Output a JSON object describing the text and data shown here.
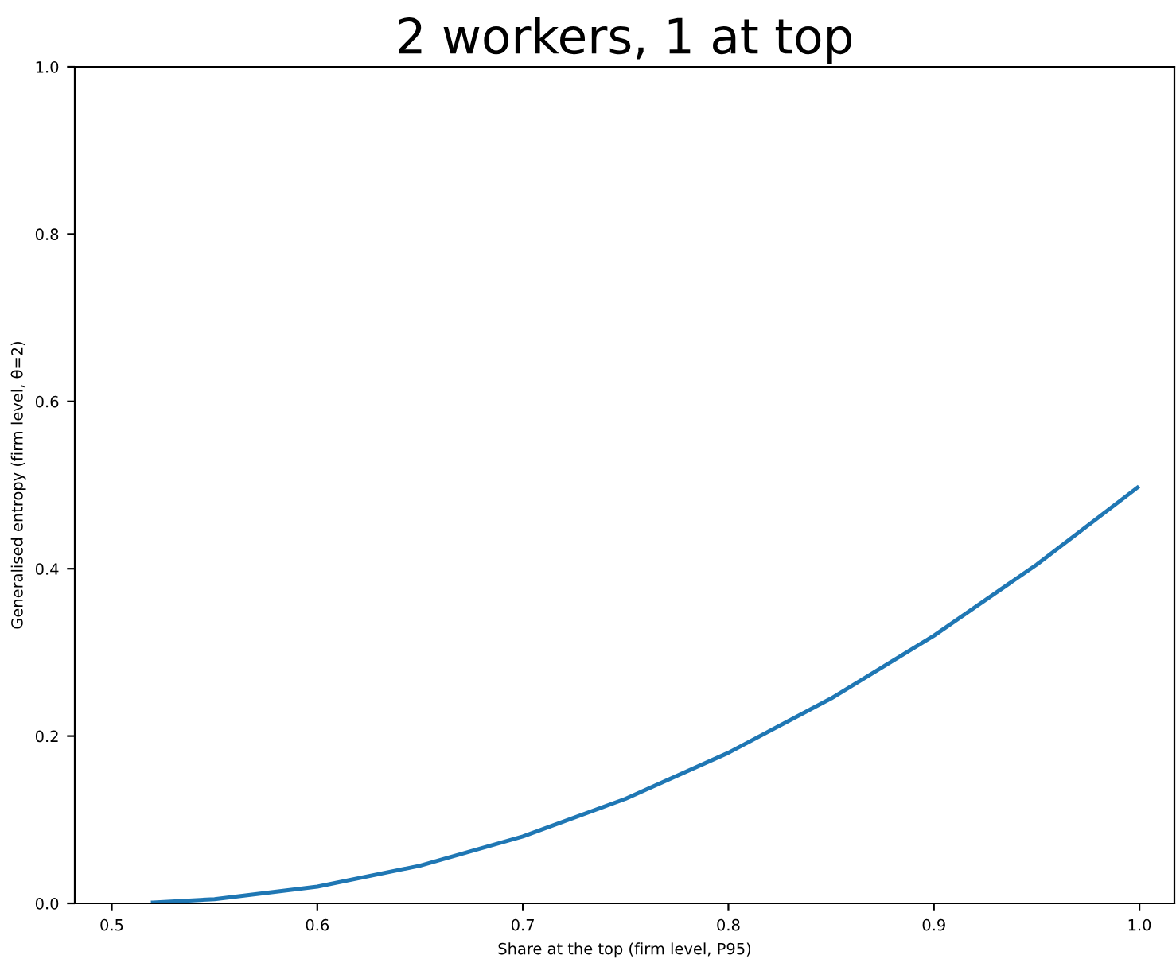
{
  "chart_data": {
    "type": "line",
    "title": "2 workers, 1 at top",
    "xlabel": "Share at the top (firm level, P95)",
    "ylabel": "Generalised entropy (firm level, θ=2)",
    "x": [
      0.52,
      0.55,
      0.6,
      0.65,
      0.7,
      0.75,
      0.8,
      0.85,
      0.9,
      0.95,
      0.999
    ],
    "series": [
      {
        "color": "#1f77b4",
        "values": [
          0.001,
          0.005,
          0.02,
          0.045,
          0.08,
          0.125,
          0.18,
          0.245,
          0.32,
          0.405,
          0.497
        ]
      }
    ],
    "xlim": [
      0.482,
      1.017
    ],
    "ylim": [
      0,
      1
    ],
    "xticks": [
      0.5,
      0.6,
      0.7,
      0.8,
      0.9,
      {
        "value": 1.0,
        "label": "1.0"
      }
    ],
    "yticks": [
      {
        "value": 0,
        "label": "0.0"
      },
      0.2,
      0.4,
      0.6,
      0.8,
      {
        "value": 1,
        "label": "1.0"
      }
    ],
    "grid": false,
    "legend": false,
    "marker": "none",
    "line_style": "solid"
  }
}
